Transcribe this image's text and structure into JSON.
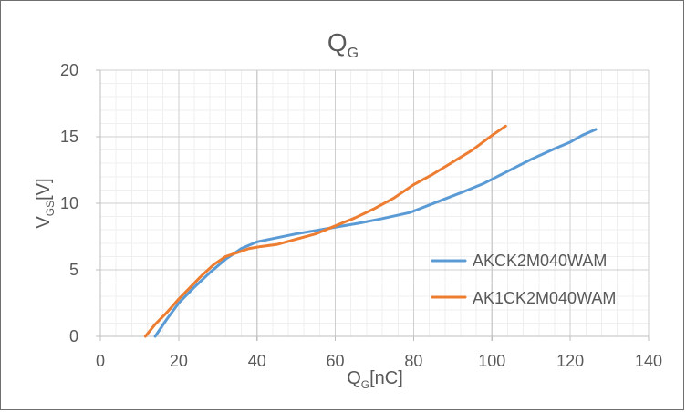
{
  "chart_data": {
    "type": "line",
    "title": {
      "main": "Q",
      "sub": "G"
    },
    "xlabel": {
      "main": "Q",
      "sub": "G",
      "suffix": "[nC]"
    },
    "ylabel": {
      "main": "V",
      "sub": "GS",
      "suffix": "[V]"
    },
    "xlim": [
      0,
      140
    ],
    "ylim": [
      0,
      20
    ],
    "xticks": [
      0,
      20,
      40,
      60,
      80,
      100,
      120,
      140
    ],
    "yticks": [
      0,
      5,
      10,
      15,
      20
    ],
    "grid": {
      "major": true,
      "minor": true
    },
    "legend": {
      "position": "right"
    },
    "series": [
      {
        "name": "AKCK2M040WAM",
        "color": "#5b9bd5",
        "points": [
          [
            14.0,
            0.0
          ],
          [
            17.0,
            1.3
          ],
          [
            20.0,
            2.5
          ],
          [
            24.0,
            3.7
          ],
          [
            28.0,
            4.8
          ],
          [
            32.0,
            5.8
          ],
          [
            36.0,
            6.6
          ],
          [
            40.0,
            7.1
          ],
          [
            45.0,
            7.4
          ],
          [
            50.0,
            7.7
          ],
          [
            55.0,
            7.95
          ],
          [
            60.0,
            8.2
          ],
          [
            66.0,
            8.5
          ],
          [
            72.0,
            8.85
          ],
          [
            79.0,
            9.3
          ],
          [
            86.0,
            10.1
          ],
          [
            93.0,
            10.9
          ],
          [
            98.0,
            11.5
          ],
          [
            104.0,
            12.4
          ],
          [
            110.0,
            13.3
          ],
          [
            116.0,
            14.1
          ],
          [
            120.0,
            14.6
          ],
          [
            123.0,
            15.1
          ],
          [
            126.5,
            15.55
          ]
        ]
      },
      {
        "name": "AK1CK2M040WAM",
        "color": "#ed7d31",
        "points": [
          [
            11.5,
            0.0
          ],
          [
            14.0,
            0.9
          ],
          [
            17.0,
            1.8
          ],
          [
            20.0,
            2.8
          ],
          [
            23.0,
            3.7
          ],
          [
            26.0,
            4.6
          ],
          [
            29.0,
            5.4
          ],
          [
            32.0,
            6.0
          ],
          [
            35.0,
            6.3
          ],
          [
            38.0,
            6.6
          ],
          [
            41.0,
            6.75
          ],
          [
            45.0,
            6.9
          ],
          [
            50.0,
            7.3
          ],
          [
            55.0,
            7.7
          ],
          [
            60.0,
            8.3
          ],
          [
            65.0,
            8.9
          ],
          [
            70.0,
            9.6
          ],
          [
            75.0,
            10.4
          ],
          [
            80.0,
            11.4
          ],
          [
            85.0,
            12.2
          ],
          [
            90.0,
            13.1
          ],
          [
            95.0,
            14.0
          ],
          [
            100.0,
            15.1
          ],
          [
            103.5,
            15.8
          ]
        ]
      }
    ]
  }
}
